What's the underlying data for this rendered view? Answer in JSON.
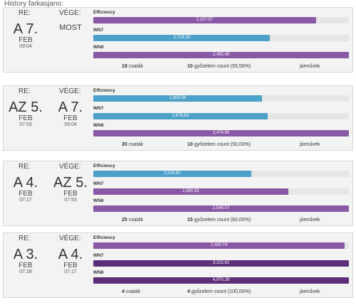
{
  "page_title": "History farkasjano:",
  "colors": {
    "purple": "#8a59a5",
    "blue": "#4da1c9",
    "dark_purple": "#5d2f79",
    "track": "#e6e6e6"
  },
  "labels": {
    "re": "RE:",
    "vege": "VÉGE:",
    "efficiency": "Efficiency",
    "wn7": "WN7",
    "wn8": "WN8",
    "battles": "csaták",
    "wins": "győzelem count",
    "vehicles": "járművek"
  },
  "cards": [
    {
      "from": {
        "day": "A 7.",
        "month": "FEB",
        "time": "09:04"
      },
      "to": {
        "most": "MOST"
      },
      "efficiency": {
        "text": "2,157.07",
        "fraction": 0.871,
        "color": "purple"
      },
      "wn7": {
        "text": "1,719.16",
        "fraction": 0.692,
        "color": "blue"
      },
      "wn8": {
        "text": "2,492.48",
        "fraction": 1.0,
        "color": "purple"
      },
      "battles": "18",
      "wins": "10",
      "win_pct": "(55,56%)"
    },
    {
      "from": {
        "day": "AZ 5.",
        "month": "FEB",
        "time": "07:53"
      },
      "to": {
        "day": "A 7.",
        "month": "FEB",
        "time": "09:04"
      },
      "efficiency": {
        "text": "1,606.56",
        "fraction": 0.66,
        "color": "blue"
      },
      "wn7": {
        "text": "1,676.83",
        "fraction": 0.682,
        "color": "blue"
      },
      "wn8": {
        "text": "2,478.85",
        "fraction": 1.0,
        "color": "purple"
      },
      "battles": "20",
      "wins": "10",
      "win_pct": "(50,00%)"
    },
    {
      "from": {
        "day": "A 4.",
        "month": "FEB",
        "time": "07:17"
      },
      "to": {
        "day": "AZ 5.",
        "month": "FEB",
        "time": "07:53"
      },
      "efficiency": {
        "text": "1,510.81",
        "fraction": 0.618,
        "color": "blue"
      },
      "wn7": {
        "text": "1,880.93",
        "fraction": 0.763,
        "color": "purple"
      },
      "wn8": {
        "text": "2,545.57",
        "fraction": 1.0,
        "color": "purple"
      },
      "battles": "25",
      "wins": "15",
      "win_pct": "(60,00%)"
    },
    {
      "from": {
        "day": "A 3.",
        "month": "FEB",
        "time": "07:28"
      },
      "to": {
        "day": "A 4.",
        "month": "FEB",
        "time": "07:17"
      },
      "efficiency": {
        "text": "2,430.74",
        "fraction": 0.984,
        "color": "purple"
      },
      "wn7": {
        "text": "3,222.62",
        "fraction": 1.0,
        "color": "dark_purple"
      },
      "wn8": {
        "text": "4,970.26",
        "fraction": 1.0,
        "color": "dark_purple"
      },
      "battles": "4",
      "wins": "4",
      "win_pct": "(100,00%)"
    }
  ]
}
